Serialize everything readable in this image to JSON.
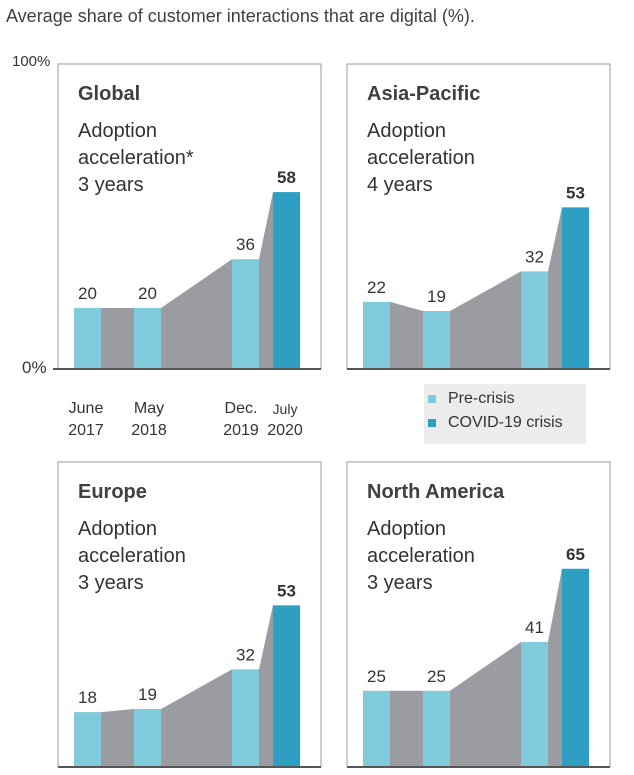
{
  "title": "Average share of customer interactions that are digital (%).",
  "y_axis": {
    "top_label": "100%",
    "bottom_label": "0%"
  },
  "x_axis_labels": [
    {
      "line1": "June",
      "line2": "2017"
    },
    {
      "line1": "May",
      "line2": "2018"
    },
    {
      "line1": "Dec.",
      "line2": "2019"
    },
    {
      "line1": "July",
      "line2": "2020"
    }
  ],
  "legend": {
    "items": [
      {
        "label": "Pre-crisis",
        "color": "#80cbdb"
      },
      {
        "label": "COVID-19 crisis",
        "color": "#2e9ec3"
      }
    ]
  },
  "colors": {
    "pre_crisis": "#80cbdb",
    "covid": "#2e9ec3",
    "connector": "#9a9ca1",
    "frame": "#9a9a9a",
    "axis": "#555555"
  },
  "chart_data": [
    {
      "type": "bar",
      "title": "Global",
      "subtitle_lines": [
        "Adoption",
        "acceleration*",
        "3 years"
      ],
      "categories": [
        "June 2017",
        "May 2018",
        "Dec. 2019",
        "July 2020"
      ],
      "values": [
        20,
        20,
        36,
        58
      ],
      "value_labels": [
        "20",
        "20",
        "36",
        "58"
      ],
      "phase": [
        "pre-crisis",
        "pre-crisis",
        "pre-crisis",
        "covid"
      ],
      "ylim": [
        0,
        100
      ]
    },
    {
      "type": "bar",
      "title": "Asia-Pacific",
      "subtitle_lines": [
        "Adoption",
        "acceleration",
        "4 years"
      ],
      "categories": [
        "June 2017",
        "May 2018",
        "Dec. 2019",
        "July 2020"
      ],
      "values": [
        22,
        19,
        32,
        53
      ],
      "value_labels": [
        "22",
        "19",
        "32",
        "53"
      ],
      "phase": [
        "pre-crisis",
        "pre-crisis",
        "pre-crisis",
        "covid"
      ],
      "ylim": [
        0,
        100
      ]
    },
    {
      "type": "bar",
      "title": "Europe",
      "subtitle_lines": [
        "Adoption",
        "acceleration",
        "3 years"
      ],
      "categories": [
        "June 2017",
        "May 2018",
        "Dec. 2019",
        "July 2020"
      ],
      "values": [
        18,
        19,
        32,
        53
      ],
      "value_labels": [
        "18",
        "19",
        "32",
        "53"
      ],
      "phase": [
        "pre-crisis",
        "pre-crisis",
        "pre-crisis",
        "covid"
      ],
      "ylim": [
        0,
        100
      ]
    },
    {
      "type": "bar",
      "title": "North America",
      "subtitle_lines": [
        "Adoption",
        "acceleration",
        "3 years"
      ],
      "categories": [
        "June 2017",
        "May 2018",
        "Dec. 2019",
        "July 2020"
      ],
      "values": [
        25,
        25,
        41,
        65
      ],
      "value_labels": [
        "25",
        "25",
        "41",
        "65"
      ],
      "phase": [
        "pre-crisis",
        "pre-crisis",
        "pre-crisis",
        "covid"
      ],
      "ylim": [
        0,
        100
      ]
    }
  ]
}
